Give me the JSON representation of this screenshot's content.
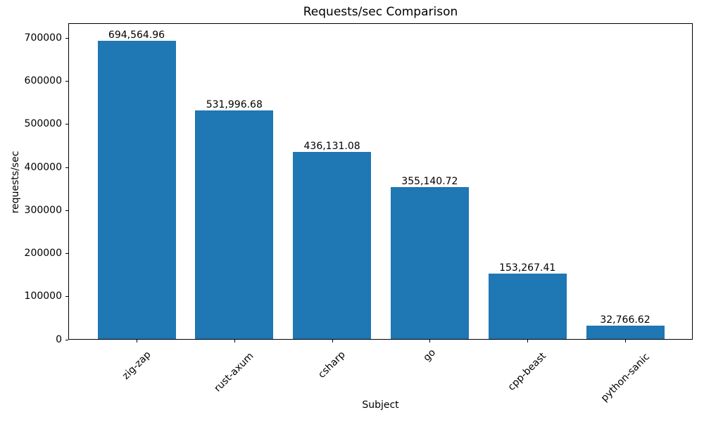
{
  "chart_data": {
    "type": "bar",
    "title": "Requests/sec Comparison",
    "xlabel": "Subject",
    "ylabel": "requests/sec",
    "categories": [
      "zig-zap",
      "rust-axum",
      "csharp",
      "go",
      "cpp-beast",
      "python-sanic"
    ],
    "values": [
      694564.96,
      531996.68,
      436131.08,
      355140.72,
      153267.41,
      32766.62
    ],
    "bar_value_labels": [
      "694,564.96",
      "531,996.68",
      "436,131.08",
      "355,140.72",
      "153,267.41",
      "32,766.62"
    ],
    "y_ticks": [
      0,
      100000,
      200000,
      300000,
      400000,
      500000,
      600000,
      700000
    ],
    "y_tick_labels": [
      "0",
      "100000",
      "200000",
      "300000",
      "400000",
      "500000",
      "600000",
      "700000"
    ],
    "ylim": [
      0,
      735000
    ],
    "x_tick_rotation_deg": 45,
    "bar_color": "#1f77b4",
    "axis_color": "#000000",
    "background_color": "#ffffff",
    "grid": false,
    "legend": null
  }
}
